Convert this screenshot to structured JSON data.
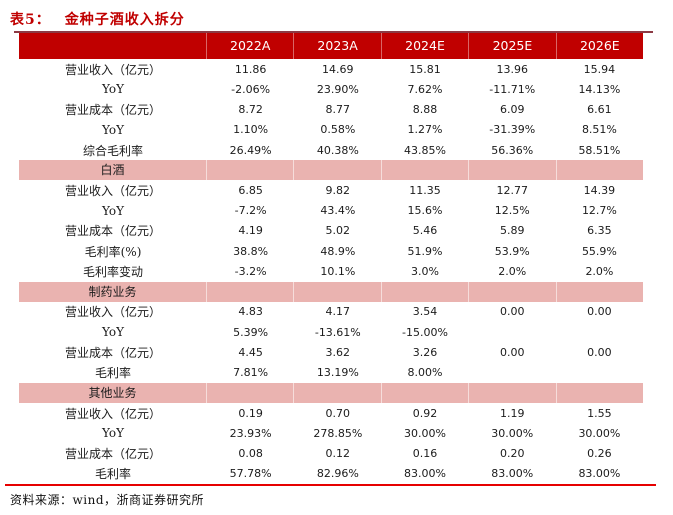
{
  "title": {
    "prefix": "表5：",
    "text": "金种子酒收入拆分"
  },
  "header": {
    "columns": [
      "2022A",
      "2023A",
      "2024E",
      "2025E",
      "2026E"
    ]
  },
  "table": {
    "sections": [
      {
        "name": "",
        "rows": [
          {
            "label": "营业收入（亿元）",
            "values": [
              "11.86",
              "14.69",
              "15.81",
              "13.96",
              "15.94"
            ]
          },
          {
            "label": "YoY",
            "values": [
              "-2.06%",
              "23.90%",
              "7.62%",
              "-11.71%",
              "14.13%"
            ]
          },
          {
            "label": "营业成本（亿元）",
            "values": [
              "8.72",
              "8.77",
              "8.88",
              "6.09",
              "6.61"
            ]
          },
          {
            "label": "YoY",
            "values": [
              "1.10%",
              "0.58%",
              "1.27%",
              "-31.39%",
              "8.51%"
            ]
          },
          {
            "label": "综合毛利率",
            "values": [
              "26.49%",
              "40.38%",
              "43.85%",
              "56.36%",
              "58.51%"
            ]
          }
        ]
      },
      {
        "name": "白酒",
        "rows": [
          {
            "label": "营业收入（亿元）",
            "values": [
              "6.85",
              "9.82",
              "11.35",
              "12.77",
              "14.39"
            ]
          },
          {
            "label": "YoY",
            "values": [
              "-7.2%",
              "43.4%",
              "15.6%",
              "12.5%",
              "12.7%"
            ]
          },
          {
            "label": "营业成本（亿元）",
            "values": [
              "4.19",
              "5.02",
              "5.46",
              "5.89",
              "6.35"
            ]
          },
          {
            "label": "毛利率(%)",
            "values": [
              "38.8%",
              "48.9%",
              "51.9%",
              "53.9%",
              "55.9%"
            ]
          },
          {
            "label": "毛利率变动",
            "values": [
              "-3.2%",
              "10.1%",
              "3.0%",
              "2.0%",
              "2.0%"
            ]
          }
        ]
      },
      {
        "name": "制药业务",
        "rows": [
          {
            "label": "营业收入（亿元）",
            "values": [
              "4.83",
              "4.17",
              "3.54",
              "0.00",
              "0.00"
            ]
          },
          {
            "label": "YoY",
            "values": [
              "5.39%",
              "-13.61%",
              "-15.00%",
              "",
              ""
            ]
          },
          {
            "label": "营业成本（亿元）",
            "values": [
              "4.45",
              "3.62",
              "3.26",
              "0.00",
              "0.00"
            ]
          },
          {
            "label": "毛利率",
            "values": [
              "7.81%",
              "13.19%",
              "8.00%",
              "",
              ""
            ]
          }
        ]
      },
      {
        "name": "其他业务",
        "rows": [
          {
            "label": "营业收入（亿元）",
            "values": [
              "0.19",
              "0.70",
              "0.92",
              "1.19",
              "1.55"
            ]
          },
          {
            "label": "YoY",
            "values": [
              "23.93%",
              "278.85%",
              "30.00%",
              "30.00%",
              "30.00%"
            ]
          },
          {
            "label": "营业成本（亿元）",
            "values": [
              "0.08",
              "0.12",
              "0.16",
              "0.20",
              "0.26"
            ]
          },
          {
            "label": "毛利率",
            "values": [
              "57.78%",
              "82.96%",
              "83.00%",
              "83.00%",
              "83.00%"
            ]
          }
        ]
      }
    ]
  },
  "source": "资料来源：wind，浙商证券研究所",
  "colors": {
    "header_bg": "#C00000",
    "section_bg": "#EAB3B0",
    "title": "#C00000",
    "top_rule": "#8C3A44",
    "bottom_rule": "#E60000"
  }
}
